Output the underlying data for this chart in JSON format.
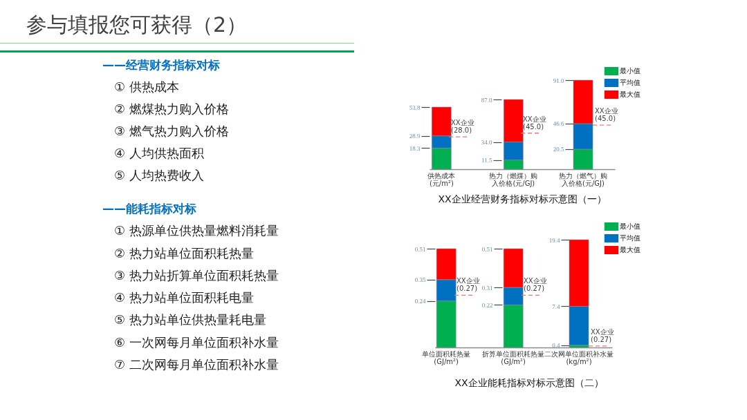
{
  "chart_data": [
    {
      "type": "other",
      "title": "参与填报您可获得（2）"
    },
    {
      "type": "other",
      "title": "——经营财务指标对标",
      "annotations": [
        "① 供热成本",
        "② 燃煤热力购入价格",
        "③ 燃气热力购入价格",
        "④ 人均供热面积",
        "⑤ 人均热费收入"
      ]
    },
    {
      "type": "other",
      "title": "——能耗指标对标",
      "annotations": [
        "① 热源单位供热量燃料消耗量",
        "② 热力站单位面积耗热量",
        "③ 热力站折算单位面积耗热量",
        "④ 热力站单位面积耗电量",
        "⑤ 热力站单位供热量耗电量",
        "⑥ 一次网每月单位面积补水量",
        "⑦ 二次网每月单位面积补水量"
      ]
    },
    {
      "type": "bar",
      "stacked": true,
      "categories": [
        "供热成本\n(元/m²)"
      ],
      "series": [
        {
          "color": "#00b050",
          "values": [
            18.3
          ]
        },
        {
          "color": "#0070c0",
          "values": [
            10.6
          ]
        },
        {
          "color": "#ff0000",
          "values": [
            24.9
          ]
        }
      ],
      "ylim": [
        0,
        53.8
      ],
      "yticks": [
        18.3,
        28.9,
        53.8
      ],
      "ref_lines": [
        {
          "axis": "y",
          "value": 28,
          "label": "XX企业\n(28.0)",
          "color": "#e87878",
          "line_style": "dashed"
        }
      ]
    },
    {
      "type": "bar",
      "stacked": true,
      "categories": [
        "热力（燃煤）购入价格(元/GJ)"
      ],
      "series": [
        {
          "color": "#00b050",
          "values": [
            11.5
          ]
        },
        {
          "color": "#0070c0",
          "values": [
            22.5
          ]
        },
        {
          "color": "#ff0000",
          "values": [
            53
          ]
        }
      ],
      "ylim": [
        0,
        87
      ],
      "yticks": [
        11.5,
        {
          "value": 34,
          "label": "34.0"
        },
        {
          "value": 87,
          "label": "87.0"
        }
      ],
      "ref_lines": [
        {
          "axis": "y",
          "value": 45,
          "label": "XX企业\n(45.0)",
          "color": "#e87878",
          "line_style": "dashed"
        }
      ],
      "annotations": [
        "XX企业经营财务指标对标示意图（一）"
      ]
    },
    {
      "type": "bar",
      "stacked": true,
      "categories": [
        "热力（燃气）购入价格(元/GJ)"
      ],
      "series": [
        {
          "name": "最小值",
          "color": "#00b050",
          "values": [
            20.5
          ]
        },
        {
          "name": "平均值",
          "color": "#0070c0",
          "values": [
            26.1
          ]
        },
        {
          "name": "最大值",
          "color": "#ff0000",
          "values": [
            44.4
          ]
        }
      ],
      "ylim": [
        0,
        91
      ],
      "yticks": [
        20.5,
        46.6,
        {
          "value": 91,
          "label": "91.0"
        }
      ],
      "ref_lines": [
        {
          "axis": "y",
          "value": 45,
          "label": "XX企业\n(45.0)",
          "color": "#e87878",
          "line_style": "dashed"
        }
      ],
      "legend": "top right"
    },
    {
      "type": "bar",
      "stacked": true,
      "categories": [
        "单位面积耗热量\n(GJ/m²)"
      ],
      "series": [
        {
          "color": "#00b050",
          "values": [
            0.24
          ]
        },
        {
          "color": "#0070c0",
          "values": [
            0.11
          ]
        },
        {
          "color": "#ff0000",
          "values": [
            0.16
          ]
        }
      ],
      "ylim": [
        0,
        0.51
      ],
      "yticks": [
        0.24,
        0.35,
        0.51
      ],
      "ref_lines": [
        {
          "axis": "y",
          "value": 0.27,
          "label": "XX企业\n(0.27)",
          "color": "#e87878",
          "line_style": "dashed"
        }
      ]
    },
    {
      "type": "bar",
      "stacked": true,
      "categories": [
        "折算单位面积耗热量\n(GJ/m²)"
      ],
      "series": [
        {
          "color": "#00b050",
          "values": [
            0.22
          ]
        },
        {
          "color": "#0070c0",
          "values": [
            0.09
          ]
        },
        {
          "color": "#ff0000",
          "values": [
            0.2
          ]
        }
      ],
      "ylim": [
        0,
        0.51
      ],
      "yticks": [
        0.22,
        0.31,
        0.51
      ],
      "ref_lines": [
        {
          "axis": "y",
          "value": 0.27,
          "label": "XX企业\n(0.27)",
          "color": "#e87878",
          "line_style": "dashed"
        }
      ],
      "annotations": [
        "XX企业能耗指标对标示意图（二）"
      ]
    },
    {
      "type": "bar",
      "stacked": true,
      "categories": [
        "二次网单位面积补水量\n(kg/m²)"
      ],
      "series": [
        {
          "name": "最小值",
          "color": "#00b050",
          "values": [
            0.4
          ]
        },
        {
          "name": "平均值",
          "color": "#0070c0",
          "values": [
            7
          ]
        },
        {
          "name": "最大值",
          "color": "#ff0000",
          "values": [
            12
          ]
        }
      ],
      "ylim": [
        0,
        19.4
      ],
      "yticks": [
        0.4,
        7.4,
        19.4
      ],
      "ref_lines": [
        {
          "axis": "y",
          "value": 0.27,
          "label": "XX企业\n(0.27)",
          "color": "#e87878",
          "line_style": "dashed"
        }
      ],
      "legend": "top right"
    }
  ]
}
